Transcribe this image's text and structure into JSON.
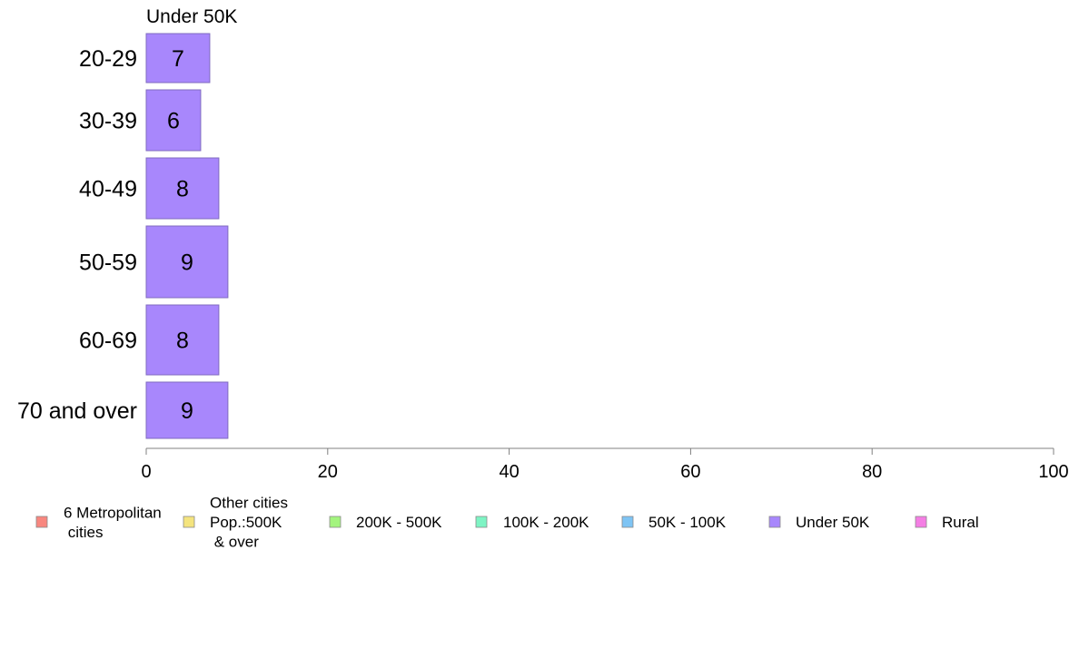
{
  "chart_data": {
    "type": "bar",
    "orientation": "horizontal",
    "title": "Under 50K",
    "categories": [
      "20-29",
      "30-39",
      "40-49",
      "50-59",
      "60-69",
      "70 and over"
    ],
    "series": [
      {
        "name": "Under 50K",
        "values": [
          7,
          6,
          8,
          9,
          8,
          9
        ]
      }
    ],
    "data_labels": [
      "7",
      "6",
      "8",
      "9",
      "8",
      "9"
    ],
    "xlim": [
      0,
      100
    ],
    "xticks": [
      0,
      20,
      40,
      60,
      80,
      100
    ],
    "xlabel": "",
    "ylabel": "",
    "grid": false,
    "legend": {
      "position": "bottom",
      "entries": [
        {
          "label": "6 Metropolitan\n cities",
          "color": "#f8877f"
        },
        {
          "label": "Other cities\nPop.:500K\n & over",
          "color": "#f4e47e"
        },
        {
          "label": "200K - 500K",
          "color": "#a3f47e"
        },
        {
          "label": "100K - 200K",
          "color": "#7ef4c4"
        },
        {
          "label": "50K - 100K",
          "color": "#7ec4f4"
        },
        {
          "label": "Under 50K",
          "color": "#a887fc"
        },
        {
          "label": "Rural",
          "color": "#f47ee4"
        }
      ]
    },
    "colors": {
      "bar": "#a887fc",
      "bar_border": "#7f6bbf",
      "axis": "#808080"
    }
  }
}
